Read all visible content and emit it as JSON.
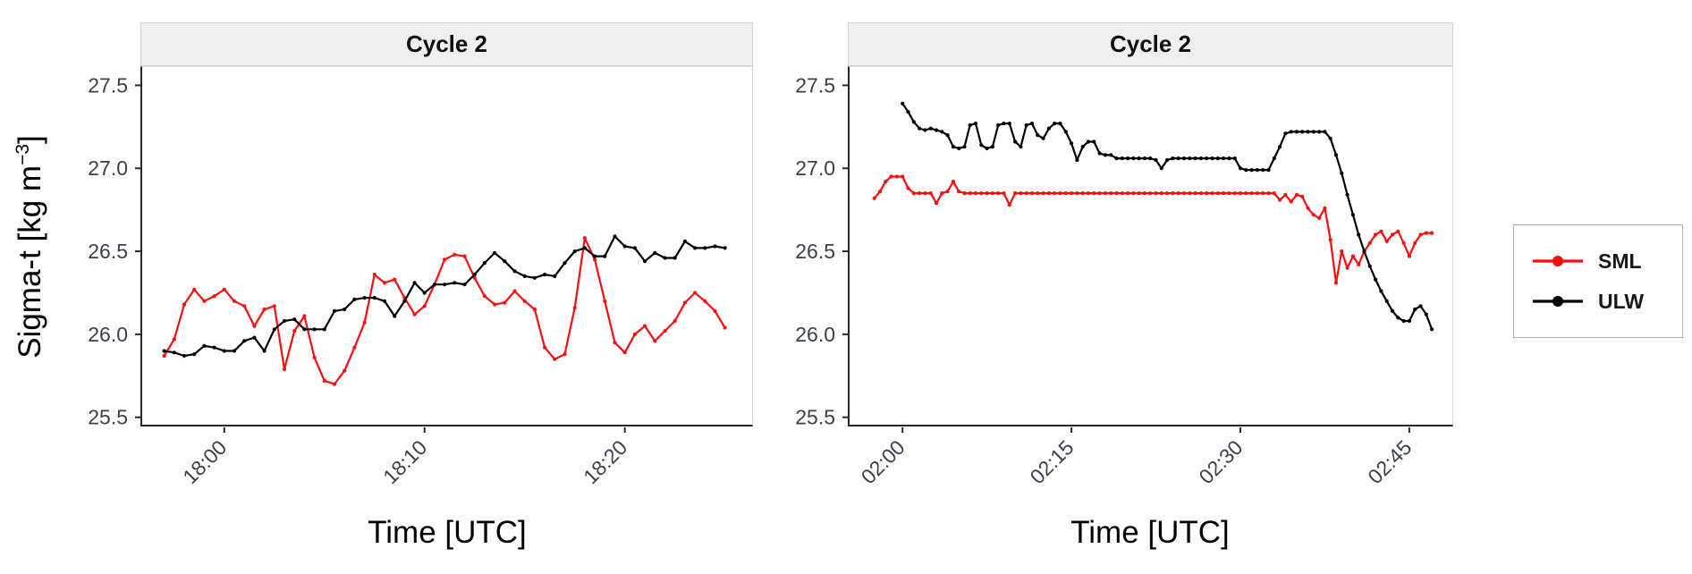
{
  "figure": {
    "ylabel_pre": "Sigma-t [kg m",
    "ylabel_sup": "−3",
    "ylabel_post": "]"
  },
  "legend": {
    "items": [
      {
        "label": "SML",
        "color": "#fb0d0d"
      },
      {
        "label": "ULW",
        "color": "#000000"
      }
    ]
  },
  "chart_data": [
    {
      "type": "line",
      "title": "Cycle 2",
      "xlabel": "Time [UTC]",
      "ylabel": "Sigma-t [kg m-3]",
      "grid": "off",
      "legend_position": "right-outside",
      "y_axis": {
        "domain": [
          25.45,
          27.61
        ],
        "ticks": [
          {
            "v": 27.5,
            "label": "27.5"
          },
          {
            "v": 27.0,
            "label": "27.0"
          },
          {
            "v": 26.5,
            "label": "26.5"
          },
          {
            "v": 26.0,
            "label": "26.0"
          },
          {
            "v": 25.5,
            "label": "25.5"
          }
        ]
      },
      "x_axis": {
        "domain_minutes": [
          1075.9,
          1106.4
        ],
        "ticks": [
          {
            "t": 1080,
            "label": "18:00"
          },
          {
            "t": 1090,
            "label": "18:10"
          },
          {
            "t": 1100,
            "label": "18:20"
          }
        ]
      },
      "series": [
        {
          "name": "SML",
          "color": "#fb0d0d",
          "start_minutes": 1077.0,
          "step_minutes": 0.5,
          "values": [
            25.87,
            25.97,
            26.18,
            26.27,
            26.2,
            26.23,
            26.27,
            26.2,
            26.17,
            26.05,
            26.15,
            26.17,
            25.79,
            26.02,
            26.11,
            25.86,
            25.72,
            25.7,
            25.78,
            25.92,
            26.07,
            26.36,
            26.31,
            26.33,
            26.22,
            26.12,
            26.17,
            26.3,
            26.45,
            26.48,
            26.47,
            26.34,
            26.23,
            26.18,
            26.19,
            26.26,
            26.2,
            26.15,
            25.92,
            25.85,
            25.88,
            26.16,
            26.58,
            26.45,
            26.2,
            25.95,
            25.89,
            26.0,
            26.05,
            25.96,
            26.02,
            26.08,
            26.19,
            26.25,
            26.2,
            26.14,
            26.04
          ]
        },
        {
          "name": "ULW",
          "color": "#000000",
          "start_minutes": 1077.0,
          "step_minutes": 0.5,
          "values": [
            25.9,
            25.89,
            25.87,
            25.88,
            25.93,
            25.92,
            25.9,
            25.9,
            25.96,
            25.98,
            25.9,
            26.03,
            26.08,
            26.09,
            26.03,
            26.03,
            26.03,
            26.14,
            26.15,
            26.21,
            26.22,
            26.22,
            26.2,
            26.11,
            26.2,
            26.31,
            26.25,
            26.3,
            26.3,
            26.31,
            26.3,
            26.36,
            26.43,
            26.49,
            26.44,
            26.38,
            26.35,
            26.34,
            26.36,
            26.35,
            26.43,
            26.5,
            26.52,
            26.47,
            26.47,
            26.59,
            26.53,
            26.52,
            26.44,
            26.49,
            26.46,
            26.46,
            26.56,
            26.52,
            26.52,
            26.53,
            26.52
          ]
        }
      ]
    },
    {
      "type": "line",
      "title": "Cycle 2",
      "xlabel": "Time [UTC]",
      "ylabel": "Sigma-t [kg m-3]",
      "grid": "off",
      "legend_position": "right-outside",
      "y_axis": {
        "domain": [
          25.45,
          27.61
        ],
        "ticks": [
          {
            "v": 27.5,
            "label": "27.5"
          },
          {
            "v": 27.0,
            "label": "27.0"
          },
          {
            "v": 26.5,
            "label": "26.5"
          },
          {
            "v": 26.0,
            "label": "26.0"
          },
          {
            "v": 25.5,
            "label": "25.5"
          }
        ]
      },
      "x_axis": {
        "domain_minutes": [
          115.3,
          168.9
        ],
        "ticks": [
          {
            "t": 120,
            "label": "02:00"
          },
          {
            "t": 135,
            "label": "02:15"
          },
          {
            "t": 150,
            "label": "02:30"
          },
          {
            "t": 165,
            "label": "02:45"
          }
        ]
      },
      "series": [
        {
          "name": "SML",
          "color": "#fb0d0d",
          "start_minutes": 117.5,
          "step_minutes": 0.5,
          "values": [
            26.82,
            26.86,
            26.92,
            26.95,
            26.95,
            26.95,
            26.88,
            26.85,
            26.85,
            26.85,
            26.85,
            26.79,
            26.85,
            26.86,
            26.92,
            26.86,
            26.85,
            26.85,
            26.85,
            26.85,
            26.85,
            26.85,
            26.85,
            26.85,
            26.78,
            26.85,
            26.85,
            26.85,
            26.85,
            26.85,
            26.85,
            26.85,
            26.85,
            26.85,
            26.85,
            26.85,
            26.85,
            26.85,
            26.85,
            26.85,
            26.85,
            26.85,
            26.85,
            26.85,
            26.85,
            26.85,
            26.85,
            26.85,
            26.85,
            26.85,
            26.85,
            26.85,
            26.85,
            26.85,
            26.85,
            26.85,
            26.85,
            26.85,
            26.85,
            26.85,
            26.85,
            26.85,
            26.85,
            26.85,
            26.85,
            26.85,
            26.85,
            26.85,
            26.85,
            26.85,
            26.85,
            26.85,
            26.81,
            26.84,
            26.8,
            26.84,
            26.83,
            26.76,
            26.72,
            26.7,
            26.76,
            26.57,
            26.31,
            26.5,
            26.4,
            26.47,
            26.42,
            26.5,
            26.55,
            26.6,
            26.62,
            26.56,
            26.6,
            26.62,
            26.55,
            26.47,
            26.55,
            26.6,
            26.61,
            26.61
          ]
        },
        {
          "name": "ULW",
          "color": "#000000",
          "start_minutes": 120.0,
          "step_minutes": 0.5,
          "values": [
            27.39,
            27.34,
            27.28,
            27.24,
            27.23,
            27.24,
            27.23,
            27.22,
            27.2,
            27.13,
            27.12,
            27.13,
            27.26,
            27.27,
            27.14,
            27.12,
            27.13,
            27.26,
            27.27,
            27.27,
            27.16,
            27.13,
            27.26,
            27.27,
            27.2,
            27.18,
            27.24,
            27.27,
            27.27,
            27.22,
            27.15,
            27.05,
            27.13,
            27.16,
            27.16,
            27.09,
            27.08,
            27.08,
            27.06,
            27.06,
            27.06,
            27.06,
            27.06,
            27.06,
            27.06,
            27.05,
            27.0,
            27.05,
            27.06,
            27.06,
            27.06,
            27.06,
            27.06,
            27.06,
            27.06,
            27.06,
            27.06,
            27.06,
            27.06,
            27.06,
            27.0,
            26.99,
            26.99,
            26.99,
            26.99,
            26.99,
            27.06,
            27.13,
            27.21,
            27.22,
            27.22,
            27.22,
            27.22,
            27.22,
            27.22,
            27.22,
            27.18,
            27.08,
            26.97,
            26.84,
            26.72,
            26.6,
            26.5,
            26.41,
            26.33,
            26.26,
            26.2,
            26.14,
            26.1,
            26.08,
            26.08,
            26.15,
            26.17,
            26.12,
            26.03
          ]
        }
      ]
    }
  ]
}
